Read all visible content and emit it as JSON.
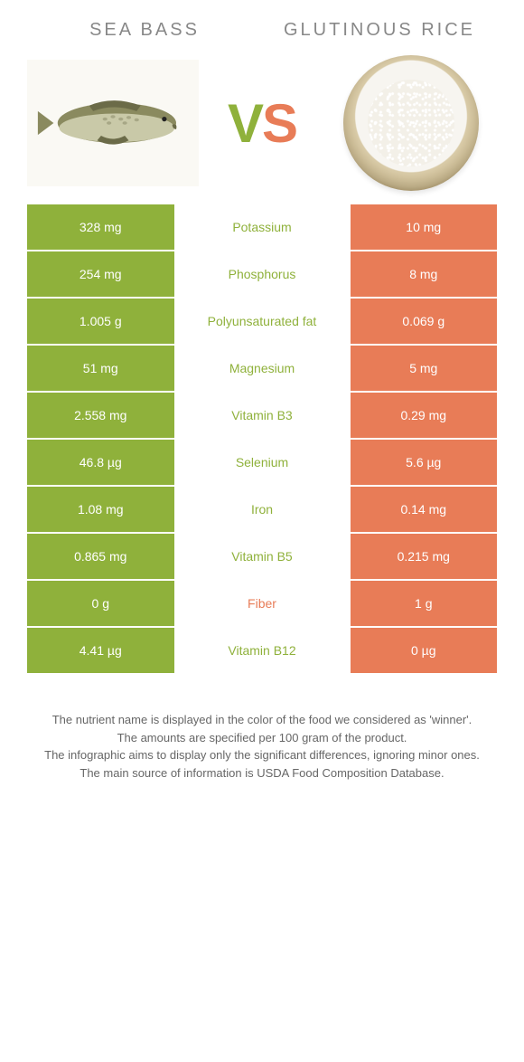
{
  "colors": {
    "left": "#8fb13b",
    "right": "#e87c57",
    "title": "#888888",
    "footer": "#666666",
    "bg": "#ffffff"
  },
  "header": {
    "left_title": "Sea bass",
    "right_title": "Glutinous rice",
    "vs_v": "V",
    "vs_s": "S"
  },
  "rows": [
    {
      "left": "328 mg",
      "label": "Potassium",
      "right": "10 mg",
      "winner": "left"
    },
    {
      "left": "254 mg",
      "label": "Phosphorus",
      "right": "8 mg",
      "winner": "left"
    },
    {
      "left": "1.005 g",
      "label": "Polyunsaturated fat",
      "right": "0.069 g",
      "winner": "left"
    },
    {
      "left": "51 mg",
      "label": "Magnesium",
      "right": "5 mg",
      "winner": "left"
    },
    {
      "left": "2.558 mg",
      "label": "Vitamin B3",
      "right": "0.29 mg",
      "winner": "left"
    },
    {
      "left": "46.8 µg",
      "label": "Selenium",
      "right": "5.6 µg",
      "winner": "left"
    },
    {
      "left": "1.08 mg",
      "label": "Iron",
      "right": "0.14 mg",
      "winner": "left"
    },
    {
      "left": "0.865 mg",
      "label": "Vitamin B5",
      "right": "0.215 mg",
      "winner": "left"
    },
    {
      "left": "0 g",
      "label": "Fiber",
      "right": "1 g",
      "winner": "right"
    },
    {
      "left": "4.41 µg",
      "label": "Vitamin B12",
      "right": "0 µg",
      "winner": "left"
    }
  ],
  "footer": {
    "line1": "The nutrient name is displayed in the color of the food we considered as 'winner'.",
    "line2": "The amounts are specified per 100 gram of the product.",
    "line3": "The infographic aims to display only the significant differences, ignoring minor ones.",
    "line4": "The main source of information is USDA Food Composition Database."
  }
}
